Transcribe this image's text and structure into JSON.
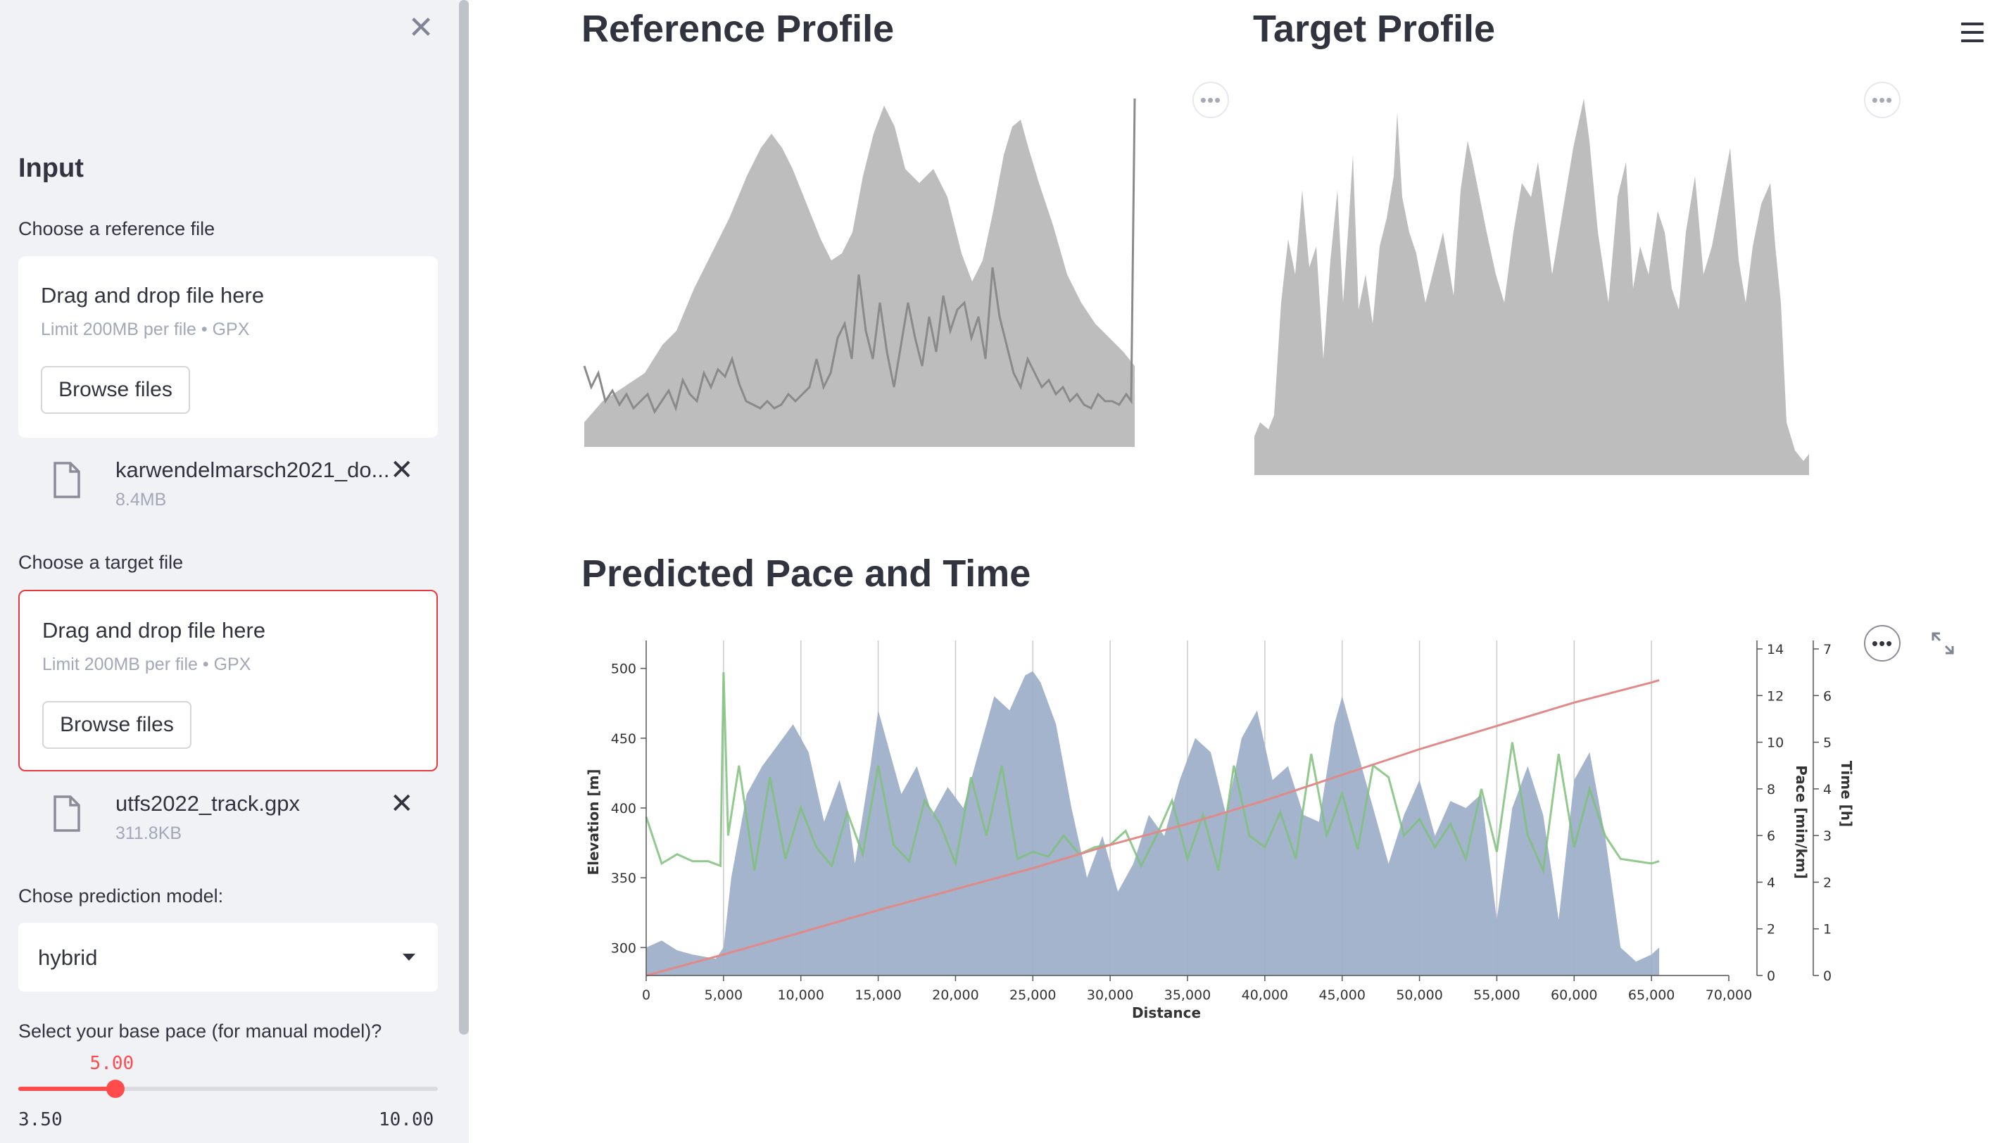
{
  "sidebar": {
    "heading": "Input",
    "close_icon": "close-icon",
    "reference": {
      "label": "Choose a reference file",
      "drop_title": "Drag and drop file here",
      "drop_sub": "Limit 200MB per file • GPX",
      "browse": "Browse files",
      "file_name": "karwendelmarsch2021_do...",
      "file_size": "8.4MB"
    },
    "target": {
      "label": "Choose a target file",
      "drop_title": "Drag and drop file here",
      "drop_sub": "Limit 200MB per file • GPX",
      "browse": "Browse files",
      "file_name": "utfs2022_track.gpx",
      "file_size": "311.8KB"
    },
    "model": {
      "label": "Chose prediction model:",
      "value": "hybrid"
    },
    "pace": {
      "label": "Select your base pace (for manual model)?",
      "value": "5.00",
      "min": "3.50",
      "max": "10.00",
      "fraction": 0.2308
    }
  },
  "main": {
    "reference_title": "Reference Profile",
    "target_title": "Target Profile",
    "prediction_title": "Predicted Pace and Time"
  },
  "colors": {
    "accent": "#ff4b4b",
    "elevation_fill": "#9fb0c9",
    "pace_line": "#7fbf7b",
    "time_line": "#e08a8a",
    "profile_fill": "#bdbdbd"
  },
  "chart_data": {
    "type": "area",
    "xlabel": "Distance",
    "ylabel": "Elevation [m]",
    "y2label": "Pace [min/km]",
    "y3label": "Time [h]",
    "x_ticks": [
      "0",
      "5,000",
      "10,000",
      "15,000",
      "20,000",
      "25,000",
      "30,000",
      "35,000",
      "40,000",
      "45,000",
      "50,000",
      "55,000",
      "60,000",
      "65,000",
      "70,000"
    ],
    "xlim": [
      0,
      70000
    ],
    "ylim": [
      280,
      520
    ],
    "y_ticks": [
      300,
      350,
      400,
      450,
      500
    ],
    "y2lim": [
      0,
      14
    ],
    "y2_ticks": [
      0,
      2,
      4,
      6,
      8,
      10,
      12,
      14
    ],
    "y3lim": [
      0,
      7
    ],
    "y3_ticks": [
      0,
      1,
      2,
      3,
      4,
      5,
      6,
      7
    ],
    "grid": "vertical",
    "series": [
      {
        "axis": "elevation",
        "x": [
          0,
          1000,
          2000,
          3000,
          4500,
          5000,
          5500,
          6500,
          7500,
          8500,
          9500,
          10500,
          11500,
          12500,
          13000,
          13500,
          14500,
          15000,
          15500,
          16500,
          17500,
          18500,
          19500,
          20500,
          21500,
          22500,
          23500,
          24500,
          25000,
          25500,
          26500,
          27500,
          28500,
          29500,
          30500,
          31500,
          32500,
          33500,
          34500,
          35500,
          36500,
          37500,
          38500,
          39500,
          40500,
          41500,
          42500,
          43500,
          44500,
          45000,
          46000,
          47000,
          48000,
          49000,
          50000,
          51000,
          52000,
          53000,
          54000,
          55000,
          56000,
          57000,
          58000,
          59000,
          60000,
          61000,
          62000,
          63000,
          64000,
          65000,
          65500
        ],
        "values": [
          300,
          305,
          298,
          295,
          292,
          300,
          350,
          410,
          430,
          445,
          460,
          440,
          390,
          420,
          400,
          360,
          430,
          470,
          450,
          410,
          430,
          395,
          415,
          400,
          440,
          480,
          470,
          495,
          498,
          490,
          460,
          400,
          350,
          380,
          340,
          360,
          395,
          380,
          420,
          450,
          440,
          395,
          450,
          470,
          420,
          430,
          395,
          390,
          460,
          480,
          440,
          400,
          360,
          395,
          420,
          380,
          405,
          400,
          410,
          320,
          400,
          430,
          395,
          320,
          420,
          440,
          380,
          300,
          290,
          295,
          300
        ]
      },
      {
        "axis": "pace",
        "x": [
          0,
          1000,
          2000,
          3000,
          4000,
          4800,
          5000,
          5300,
          6000,
          7000,
          8000,
          9000,
          10000,
          11000,
          12000,
          13000,
          14000,
          15000,
          16000,
          17000,
          18000,
          19000,
          20000,
          21000,
          22000,
          23000,
          24000,
          25000,
          26000,
          27000,
          28000,
          29000,
          30000,
          31000,
          32000,
          33000,
          34000,
          35000,
          36000,
          37000,
          38000,
          39000,
          40000,
          41000,
          42000,
          43000,
          44000,
          45000,
          46000,
          47000,
          48000,
          49000,
          50000,
          51000,
          52000,
          53000,
          54000,
          55000,
          56000,
          57000,
          58000,
          59000,
          60000,
          61000,
          62000,
          63000,
          64000,
          65000,
          65500
        ],
        "values": [
          6.8,
          4.8,
          5.2,
          4.9,
          4.9,
          4.7,
          13,
          6,
          9,
          4.5,
          8.5,
          5,
          7.2,
          5.5,
          4.7,
          7,
          5.2,
          9,
          5.6,
          4.9,
          7.5,
          6.5,
          4.8,
          8.5,
          6,
          9,
          5,
          5.3,
          5.1,
          6,
          5.2,
          5.5,
          5.6,
          6.2,
          4.7,
          6,
          7.5,
          5,
          6.9,
          4.5,
          9,
          6,
          5.5,
          7,
          5,
          9.5,
          6,
          7.8,
          5.4,
          9,
          8.5,
          6,
          6.7,
          5.5,
          6.5,
          5,
          8,
          5.3,
          10,
          6,
          4.5,
          9.5,
          5.5,
          8,
          6,
          5,
          4.9,
          4.8,
          4.9
        ]
      },
      {
        "axis": "time",
        "x": [
          0,
          5000,
          10000,
          15000,
          20000,
          25000,
          30000,
          35000,
          40000,
          45000,
          50000,
          55000,
          60000,
          65000,
          65500
        ],
        "values": [
          0,
          0.45,
          0.92,
          1.4,
          1.85,
          2.3,
          2.8,
          3.25,
          3.75,
          4.3,
          4.85,
          5.35,
          5.85,
          6.28,
          6.33
        ]
      }
    ]
  }
}
